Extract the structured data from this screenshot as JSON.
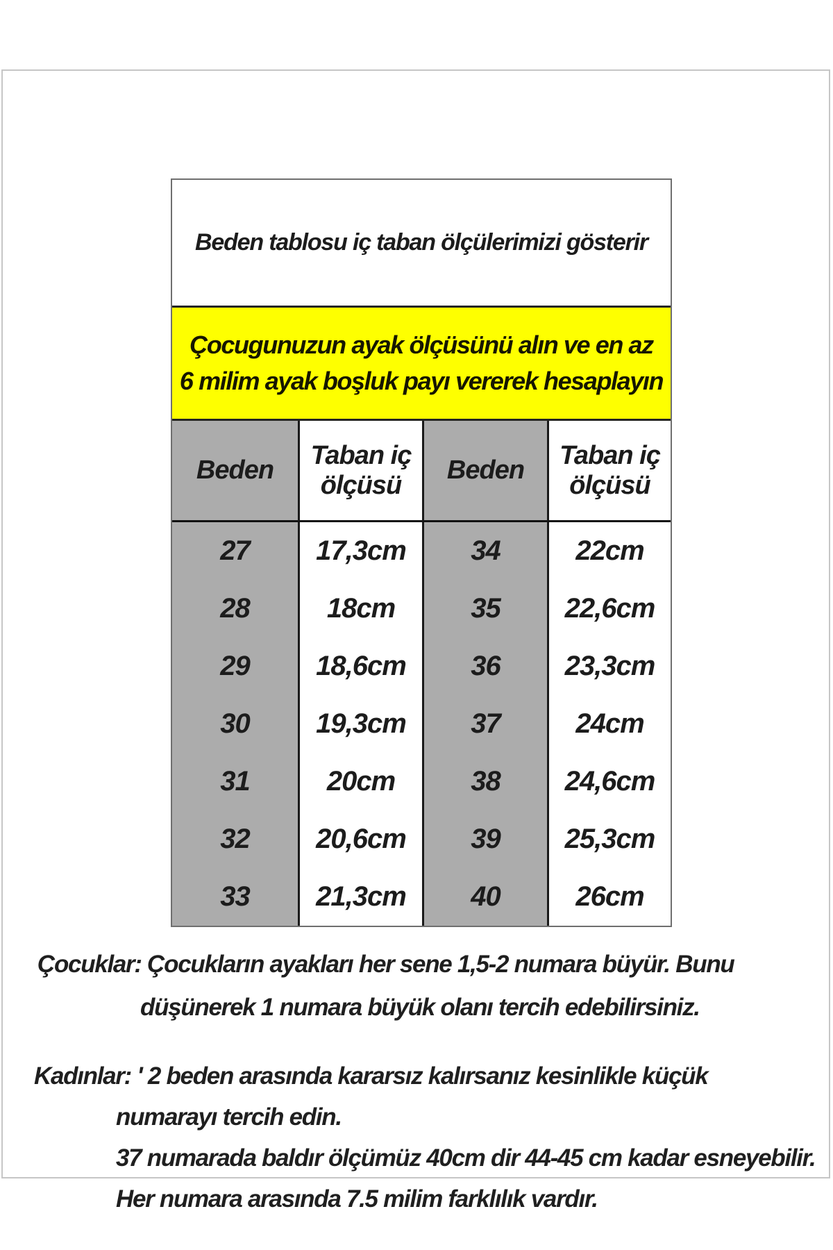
{
  "title_box": {
    "text": "Beden tablosu iç taban ölçülerimizi gösterir"
  },
  "notice_box": {
    "line1": "Çocugunuzun ayak ölçüsünü alın ve en az",
    "line2": "6 milim ayak boşluk payı vererek hesaplayın"
  },
  "chart_data": {
    "type": "table",
    "title": "Beden tablosu iç taban ölçülerimizi gösterir",
    "headers": [
      "Beden",
      "Taban iç ölçüsü",
      "Beden",
      "Taban iç ölçüsü"
    ],
    "rows": [
      [
        "27",
        "17,3cm",
        "34",
        "22cm"
      ],
      [
        "28",
        "18cm",
        "35",
        "22,6cm"
      ],
      [
        "29",
        "18,6cm",
        "36",
        "23,3cm"
      ],
      [
        "30",
        "19,3cm",
        "37",
        "24cm"
      ],
      [
        "31",
        "20cm",
        "38",
        "24,6cm"
      ],
      [
        "32",
        "20,6cm",
        "39",
        "25,3cm"
      ],
      [
        "33",
        "21,3cm",
        "40",
        "26cm"
      ]
    ]
  },
  "notes": {
    "children": {
      "line1": "Çocuklar: Çocukların ayakları her sene 1,5-2 numara büyür. Bunu",
      "line2": "düşünerek 1 numara büyük olanı tercih edebilirsiniz."
    },
    "women": {
      "line1": "Kadınlar:  ' 2 beden arasında kararsız kalırsanız kesinlikle küçük",
      "line2": "numarayı tercih edin.",
      "line3": "37 numarada baldır ölçümüz 40cm dir 44-45 cm kadar esneyebilir.",
      "line4": "Her numara arasında 7.5 milim farklılık vardır."
    }
  },
  "colors": {
    "notice_bg": "#feff00",
    "gray_cell": "#acacac",
    "text": "#1c1c1c",
    "frame_border": "#c6c6c6"
  }
}
